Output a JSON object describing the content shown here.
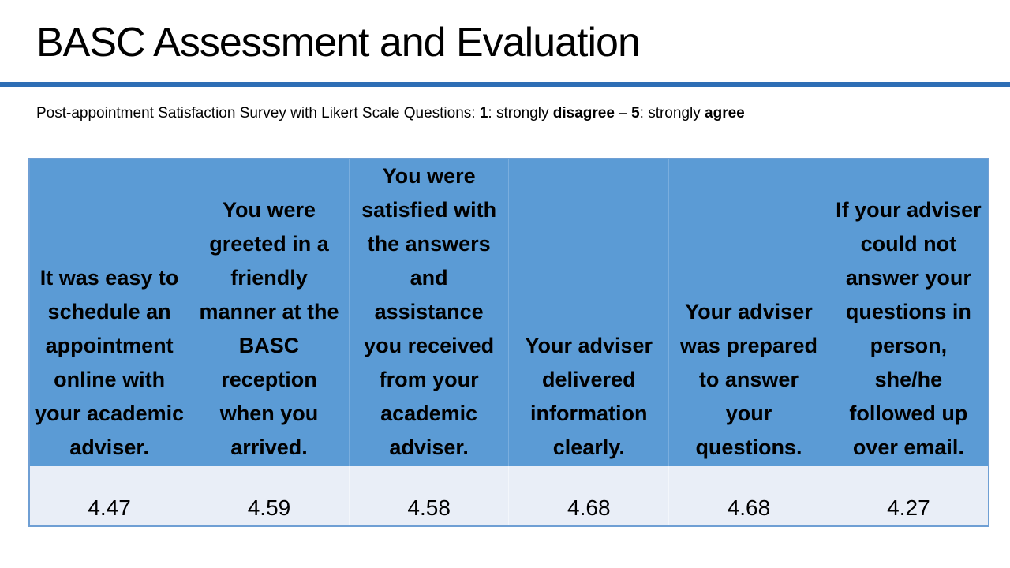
{
  "slide": {
    "title": "BASC Assessment and Evaluation",
    "subtitle": {
      "prefix": "Post-appointment Satisfaction Survey with Likert Scale Questions: ",
      "low_num": "1",
      "low_text": ": strongly ",
      "low_word": "disagree",
      "dash": " – ",
      "high_num": "5",
      "high_text": ": strongly ",
      "high_word": "agree"
    }
  },
  "table": {
    "headers": [
      "It was easy to schedule an appointment online with your academic adviser.",
      "You were greeted in a friendly manner at the BASC reception when you arrived.",
      "You were satisfied with the answers and assistance you received from your academic adviser.",
      "Your adviser delivered information clearly.",
      "Your adviser was prepared to answer your questions.",
      "If your adviser could not answer your questions in person, she/he followed up over email."
    ],
    "scores": [
      "4.47",
      "4.59",
      "4.58",
      "4.68",
      "4.68",
      "4.27"
    ]
  },
  "colors": {
    "title_rule": "#2e6eb5",
    "header_fill": "#5b9bd5",
    "score_fill": "#e9eef7",
    "table_border": "#6f9fd4"
  }
}
